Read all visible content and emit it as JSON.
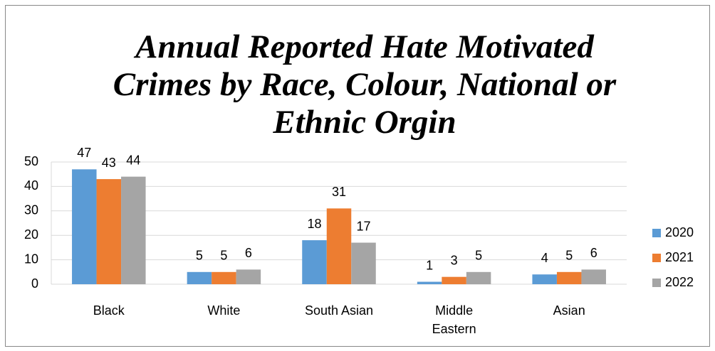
{
  "chart_data": {
    "type": "bar",
    "title": "Annual Reported Hate Motivated Crimes by Race, Colour, National or Ethnic Orgin",
    "categories": [
      "Black",
      "White",
      "South Asian",
      "Middle Eastern",
      "Asian"
    ],
    "series": [
      {
        "name": "2020",
        "color": "#5b9bd5",
        "values": [
          47,
          5,
          18,
          1,
          4
        ]
      },
      {
        "name": "2021",
        "color": "#ed7d31",
        "values": [
          43,
          5,
          31,
          3,
          5
        ]
      },
      {
        "name": "2022",
        "color": "#a5a5a5",
        "values": [
          44,
          6,
          17,
          5,
          6
        ]
      }
    ],
    "ylim": [
      0,
      50
    ],
    "yticks": [
      0,
      10,
      20,
      30,
      40,
      50
    ],
    "grid": true,
    "legend": "right"
  }
}
